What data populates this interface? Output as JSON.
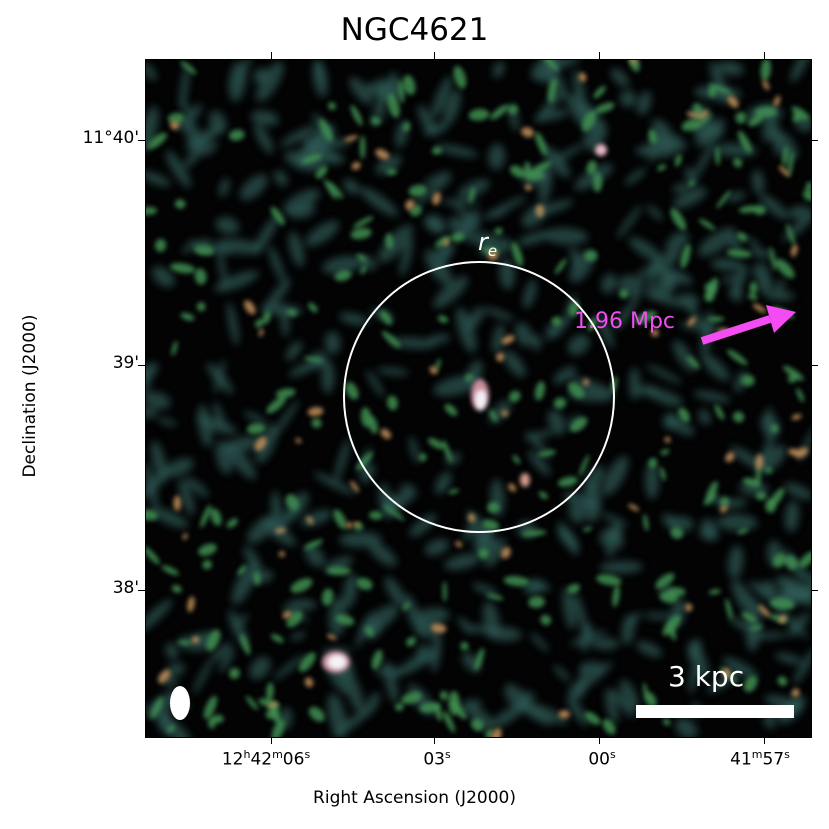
{
  "title": "NGC4621",
  "axes": {
    "xlabel": "Right Ascension (J2000)",
    "ylabel": "Declination (J2000)",
    "y_ticks": [
      "11°40'",
      "39'",
      "38'"
    ],
    "x_ticks": [
      {
        "main": "12",
        "sup1": "h",
        "mid": "42",
        "sup2": "m",
        "end": "06",
        "sup3": "s"
      },
      {
        "main": "03",
        "sup1": "s"
      },
      {
        "main": "00",
        "sup1": "s"
      },
      {
        "main": "41",
        "sup1": "m",
        "mid": "57",
        "sup2": "s"
      }
    ]
  },
  "annotations": {
    "effective_radius_symbol": "r",
    "effective_radius_subscript": "e",
    "distance_label": "1.96 Mpc",
    "scale_bar_label": "3 kpc"
  },
  "colors": {
    "background": "#030304",
    "arrow": "#f24cf2",
    "circle": "#ffffff",
    "beam": "#ffffff"
  }
}
